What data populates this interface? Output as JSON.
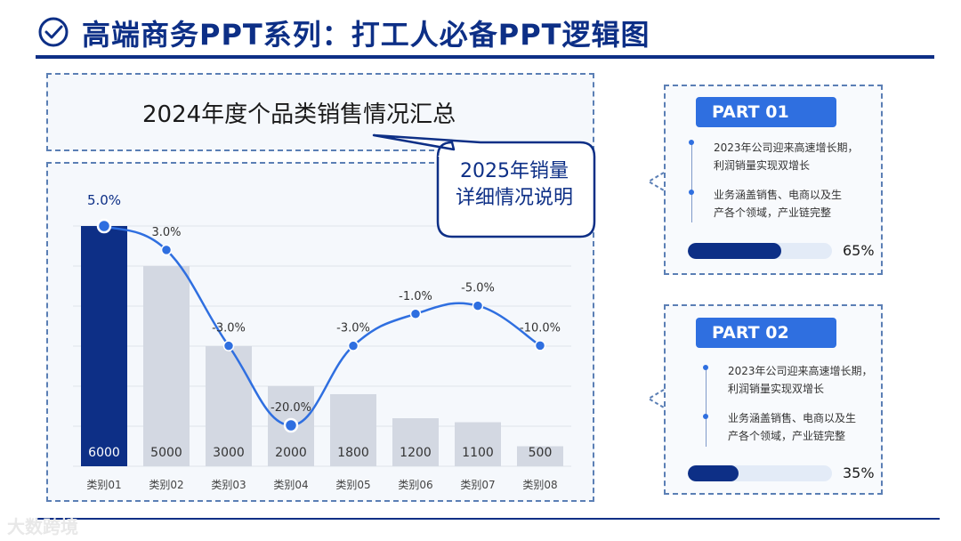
{
  "header": {
    "title": "高端商务PPT系列：打工人必备PPT逻辑图"
  },
  "chart_data": {
    "type": "bar",
    "title": "2024年度个品类销售情况汇总",
    "categories": [
      "类别01",
      "类别02",
      "类别03",
      "类别04",
      "类别05",
      "类别06",
      "类别07",
      "类别08"
    ],
    "values": [
      6000,
      5000,
      3000,
      2000,
      1800,
      1200,
      1100,
      500
    ],
    "value_labels": [
      "6000",
      "5000",
      "3000",
      "2000",
      "1800",
      "1200",
      "1100",
      "500"
    ],
    "highlight_index": 0,
    "ylim": [
      0,
      6000
    ],
    "series": [
      {
        "name": "bars",
        "values": [
          6000,
          5000,
          3000,
          2000,
          1800,
          1200,
          1100,
          500
        ]
      },
      {
        "name": "growth",
        "type": "line",
        "values": [
          5.0,
          3.0,
          -3.0,
          -20.0,
          -3.0,
          -1.0,
          -5.0,
          -10.0
        ],
        "unit": "%"
      }
    ],
    "growth_labels": [
      "5.0%",
      "3.0%",
      "-3.0%",
      "-20.0%",
      "-3.0%",
      "-1.0%",
      "-5.0%",
      "-10.0%"
    ],
    "growth_range": [
      -20,
      5
    ],
    "colors": {
      "highlight": "#0d2f86",
      "bar": "#d3d8e2",
      "line": "#2f6fe0",
      "grid": "#dfe3ea"
    }
  },
  "callout": {
    "line1": "2025年销量",
    "line2": "详细情况说明"
  },
  "parts": [
    {
      "label": "PART 01",
      "bullet1_line1": "2023年公司迎来高速增长期，",
      "bullet1_line2": "利润销量实现双增长",
      "bullet2_line1": "业务涵盖销售、电商以及生",
      "bullet2_line2": "产各个领域，产业链完整",
      "progress": 65,
      "progress_label": "65%"
    },
    {
      "label": "PART 02",
      "bullet1_line1": "2023年公司迎来高速增长期，",
      "bullet1_line2": "利润销量实现双增长",
      "bullet2_line1": "业务涵盖销售、电商以及生",
      "bullet2_line2": "产各个领域，产业链完整",
      "progress": 35,
      "progress_label": "35%"
    }
  ],
  "watermark": "大数跨境",
  "colors": {
    "brand": "#0d2f86",
    "accent": "#2f6fe0"
  }
}
